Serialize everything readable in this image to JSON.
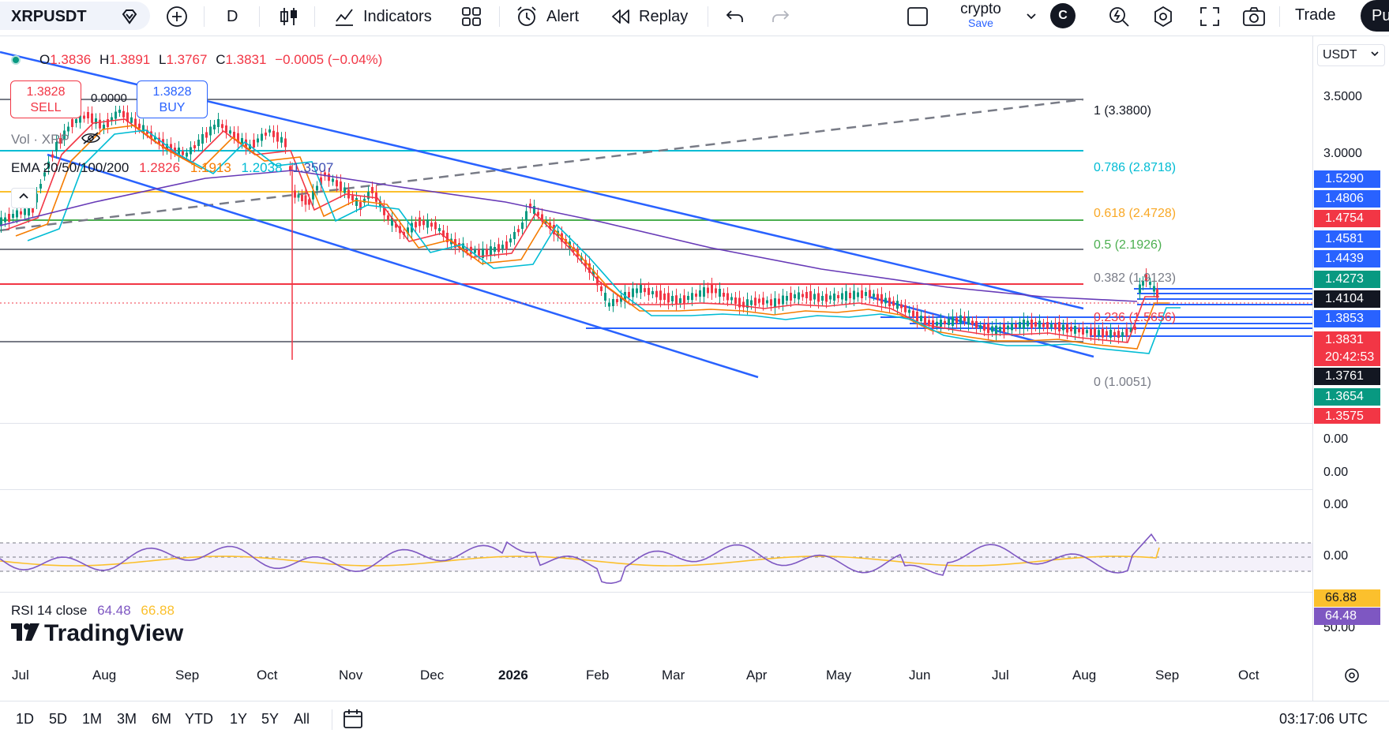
{
  "toolbar": {
    "symbol": "XRPUSDT",
    "interval": "D",
    "indicators_label": "Indicators",
    "alert_label": "Alert",
    "replay_label": "Replay",
    "workspace_name": "crypto",
    "workspace_save": "Save",
    "avatar_letter": "C",
    "trade_label": "Trade",
    "publish_label": "Pu"
  },
  "legend": {
    "o_label": "O",
    "o_value": "1.3836",
    "h_label": "H",
    "h_value": "1.3891",
    "l_label": "L",
    "l_value": "1.3767",
    "c_label": "C",
    "c_value": "1.3831",
    "change": "−0.0005 (−0.04%)",
    "sell_price": "1.3828",
    "sell_label": "SELL",
    "buy_price": "1.3828",
    "buy_label": "BUY",
    "spread": "0.0000",
    "vol_label": "Vol · XRP",
    "ema_label": "EMA 20/50/100/200",
    "ema_20": "1.2826",
    "ema_50": "1.1913",
    "ema_100": "1.2038",
    "ema_200": "1.3507",
    "rsi_label": "RSI 14 close",
    "rsi_value": "64.48",
    "rsi_ma": "66.88"
  },
  "colors": {
    "up": "#089981",
    "down": "#f23645",
    "accent": "#2962ff",
    "ema20": "#f23645",
    "ema50": "#f57c00",
    "ema100": "#00bcd4",
    "ema200": "#673ab7",
    "rsi": "#7e57c2",
    "rsi_ma": "#fbc02d"
  },
  "fib_levels": [
    {
      "label": "1 (3.3800)",
      "color": "#787b86"
    },
    {
      "label": "0.786 (2.8718)",
      "color": "#00bcd4"
    },
    {
      "label": "0.618 (2.4728)",
      "color": "#fbc02d"
    },
    {
      "label": "0.5 (2.1926)",
      "color": "#4caf50"
    },
    {
      "label": "0.382 (1.9123)",
      "color": "#787b86"
    },
    {
      "label": "0.236 (1.5656)",
      "color": "#f23645"
    },
    {
      "label": "0 (1.0051)",
      "color": "#787b86"
    }
  ],
  "price_axis": {
    "currency": "USDT",
    "ticks": [
      "3.5000",
      "3.0000"
    ],
    "volume_ticks": [
      "0.00",
      "0.00",
      "0.00",
      "0.00"
    ],
    "rsi_ticks": [
      "50.00"
    ]
  },
  "price_labels": [
    {
      "value": "1.5290",
      "color": "#2962ff"
    },
    {
      "value": "1.4806",
      "color": "#2962ff"
    },
    {
      "value": "1.4754",
      "color": "#f23645"
    },
    {
      "value": "1.4581",
      "color": "#2962ff"
    },
    {
      "value": "1.4439",
      "color": "#2962ff"
    },
    {
      "value": "1.4273",
      "color": "#089981"
    },
    {
      "value": "1.4104",
      "color": "#131722"
    },
    {
      "value": "1.3853",
      "color": "#2962ff"
    },
    {
      "value": "1.3831",
      "color": "#f23645"
    },
    {
      "value": "20:42:53",
      "color": "#f23645"
    },
    {
      "value": "1.3761",
      "color": "#131722"
    },
    {
      "value": "1.3654",
      "color": "#089981"
    },
    {
      "value": "1.3575",
      "color": "#f23645"
    }
  ],
  "rsi_labels": [
    {
      "value": "66.88",
      "color": "#fbc02d"
    },
    {
      "value": "64.48",
      "color": "#7e57c2"
    }
  ],
  "time_axis": [
    "Jul",
    "Aug",
    "Sep",
    "Oct",
    "Nov",
    "Dec",
    "2026",
    "Feb",
    "Mar",
    "Apr",
    "May",
    "Jun",
    "Jul",
    "Aug",
    "Sep",
    "Oct"
  ],
  "ranges": [
    "1D",
    "5D",
    "1M",
    "3M",
    "6M",
    "YTD",
    "1Y",
    "5Y",
    "All"
  ],
  "clock": "03:17:06 UTC",
  "logo_text": "TradingView"
}
